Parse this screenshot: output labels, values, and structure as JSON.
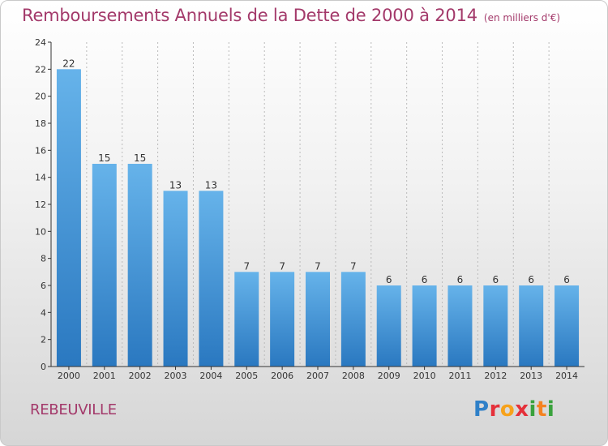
{
  "header": {
    "title": "Remboursements Annuels de la Dette de 2000 à 2014",
    "subtitle": "(en milliers d'€)"
  },
  "footer": {
    "location": "REBEUVILLE",
    "logo_text": "Proxiti"
  },
  "colors": {
    "accent": "#a3396a",
    "bar_top": "#66b3ea",
    "bar_bottom": "#2a78c0",
    "axis": "#333333",
    "grid": "#bbbbbb"
  },
  "chart_data": {
    "type": "bar",
    "categories": [
      "2000",
      "2001",
      "2002",
      "2003",
      "2004",
      "2005",
      "2006",
      "2007",
      "2008",
      "2009",
      "2010",
      "2011",
      "2012",
      "2013",
      "2014"
    ],
    "values": [
      22,
      15,
      15,
      13,
      13,
      7,
      7,
      7,
      7,
      6,
      6,
      6,
      6,
      6,
      6
    ],
    "title": "Remboursements Annuels de la Dette de 2000 à 2014",
    "subtitle": "(en milliers d'€)",
    "xlabel": "",
    "ylabel": "",
    "ylim": [
      0,
      24
    ],
    "yticks": [
      0,
      2,
      4,
      6,
      8,
      10,
      12,
      14,
      16,
      18,
      20,
      22,
      24
    ],
    "grid": true,
    "grid_axis": "x",
    "data_labels": true
  }
}
